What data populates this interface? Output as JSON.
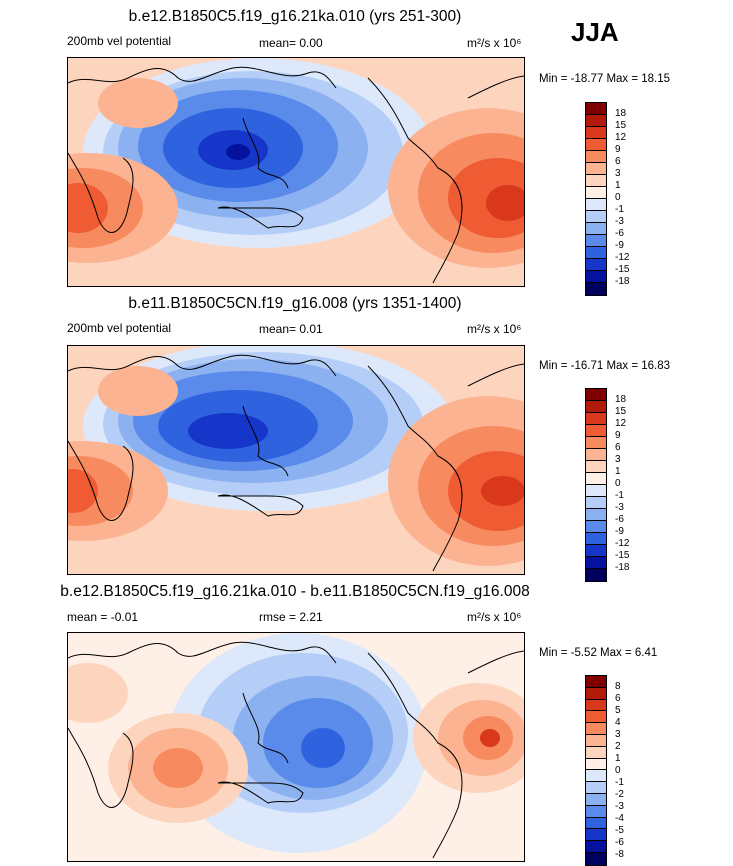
{
  "season": "JJA",
  "panels": [
    {
      "title": "b.e12.B1850C5.f19_g16.21ka.010 (yrs 251-300)",
      "left_text": "200mb vel potential",
      "mid_text": "mean=   0.00",
      "units": "m²/s x 10⁶",
      "minmax": "Min = -18.77 Max =  18.15",
      "colorbar_labels": [
        "18",
        "15",
        "12",
        "9",
        "6",
        "3",
        "1",
        "0",
        "-1",
        "-3",
        "-6",
        "-9",
        "-12",
        "-15",
        "-18"
      ]
    },
    {
      "title": "b.e11.B1850C5CN.f19_g16.008 (yrs 1351-1400)",
      "left_text": "200mb vel potential",
      "mid_text": "mean=   0.01",
      "units": "m²/s x 10⁶",
      "minmax": "Min = -16.71 Max =  16.83",
      "colorbar_labels": [
        "18",
        "15",
        "12",
        "9",
        "6",
        "3",
        "1",
        "0",
        "-1",
        "-3",
        "-6",
        "-9",
        "-12",
        "-15",
        "-18"
      ]
    },
    {
      "title": "b.e12.B1850C5.f19_g16.21ka.010 - b.e11.B1850C5CN.f19_g16.008",
      "left_text": "mean = -0.01",
      "mid_text": "rmse =   2.21",
      "units": "m²/s x 10⁶",
      "minmax": "Min =  -5.52 Max =   6.41",
      "colorbar_labels": [
        "8",
        "6",
        "5",
        "4",
        "3",
        "2",
        "1",
        "0",
        "-1",
        "-2",
        "-3",
        "-4",
        "-5",
        "-6",
        "-8"
      ]
    }
  ],
  "colors": {
    "scale": [
      "#7f0000",
      "#b21b0a",
      "#d9391a",
      "#ef5b33",
      "#f78a5f",
      "#fbb391",
      "#fdd5bf",
      "#fef0e6",
      "#dde9fb",
      "#b5cef7",
      "#8bb1f1",
      "#5a8bea",
      "#2f62df",
      "#1536c9",
      "#05129e",
      "#00005f"
    ]
  }
}
